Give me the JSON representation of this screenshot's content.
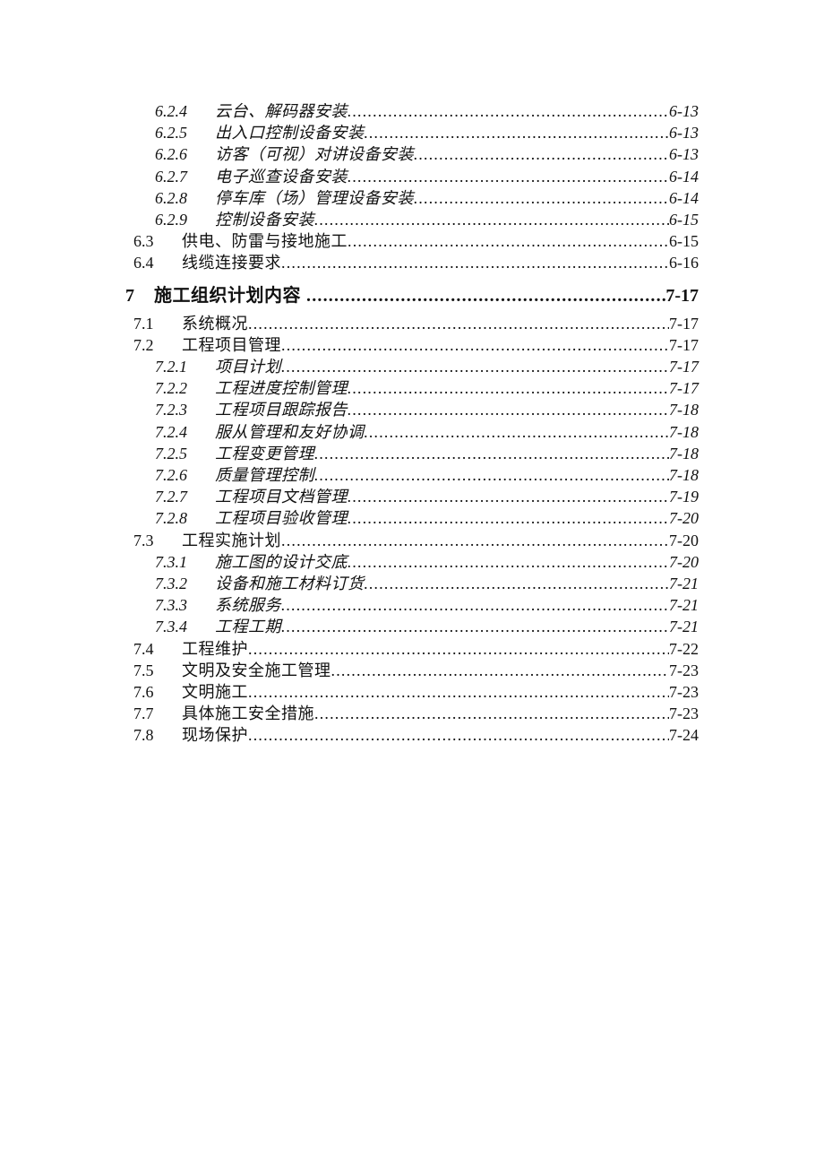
{
  "page": {
    "background": "#ffffff",
    "text_color": "#111111"
  },
  "toc": {
    "entries": [
      {
        "number": "6.2.4",
        "title": "云台、解码器安装",
        "page": "6-13",
        "level": 3,
        "style": "italic"
      },
      {
        "number": "6.2.5",
        "title": "出入口控制设备安装",
        "page": "6-13",
        "level": 3,
        "style": "italic"
      },
      {
        "number": "6.2.6",
        "title": "访客（可视）对讲设备安装",
        "page": "6-13",
        "level": 3,
        "style": "italic"
      },
      {
        "number": "6.2.7",
        "title": "电子巡查设备安装",
        "page": "6-14",
        "level": 3,
        "style": "italic"
      },
      {
        "number": "6.2.8",
        "title": "停车库（场）管理设备安装",
        "page": "6-14",
        "level": 3,
        "style": "italic"
      },
      {
        "number": "6.2.9",
        "title": "控制设备安装",
        "page": "6-15",
        "level": 3,
        "style": "italic"
      },
      {
        "number": "6.3",
        "title": "供电、防雷与接地施工",
        "page": "6-15",
        "level": 2,
        "style": "regular"
      },
      {
        "number": "6.4",
        "title": "线缆连接要求",
        "page": "6-16",
        "level": 2,
        "style": "regular"
      },
      {
        "number": "7",
        "title": "施工组织计划内容",
        "page": "7-17",
        "level": 1,
        "style": "bold"
      },
      {
        "number": "7.1",
        "title": "系统概况",
        "page": "7-17",
        "level": 2,
        "style": "regular"
      },
      {
        "number": "7.2",
        "title": "工程项目管理",
        "page": "7-17",
        "level": 2,
        "style": "regular"
      },
      {
        "number": "7.2.1",
        "title": "项目计划",
        "page": "7-17",
        "level": 3,
        "style": "italic"
      },
      {
        "number": "7.2.2",
        "title": "工程进度控制管理",
        "page": "7-17",
        "level": 3,
        "style": "italic"
      },
      {
        "number": "7.2.3",
        "title": "工程项目跟踪报告",
        "page": "7-18",
        "level": 3,
        "style": "italic"
      },
      {
        "number": "7.2.4",
        "title": "服从管理和友好协调",
        "page": "7-18",
        "level": 3,
        "style": "italic"
      },
      {
        "number": "7.2.5",
        "title": "工程变更管理",
        "page": "7-18",
        "level": 3,
        "style": "italic"
      },
      {
        "number": "7.2.6",
        "title": "质量管理控制",
        "page": "7-18",
        "level": 3,
        "style": "italic"
      },
      {
        "number": "7.2.7",
        "title": "工程项目文档管理",
        "page": "7-19",
        "level": 3,
        "style": "italic"
      },
      {
        "number": "7.2.8",
        "title": "工程项目验收管理",
        "page": "7-20",
        "level": 3,
        "style": "italic"
      },
      {
        "number": "7.3",
        "title": "工程实施计划",
        "page": "7-20",
        "level": 2,
        "style": "regular"
      },
      {
        "number": "7.3.1",
        "title": "施工图的设计交底",
        "page": "7-20",
        "level": 3,
        "style": "italic"
      },
      {
        "number": "7.3.2",
        "title": "设备和施工材料订货",
        "page": "7-21",
        "level": 3,
        "style": "italic"
      },
      {
        "number": "7.3.3",
        "title": "系统服务",
        "page": "7-21",
        "level": 3,
        "style": "italic"
      },
      {
        "number": "7.3.4",
        "title": "工程工期",
        "page": "7-21",
        "level": 3,
        "style": "italic"
      },
      {
        "number": "7.4",
        "title": "工程维护",
        "page": "7-22",
        "level": 2,
        "style": "regular"
      },
      {
        "number": "7.5",
        "title": "文明及安全施工管理",
        "page": "7-23",
        "level": 2,
        "style": "regular"
      },
      {
        "number": "7.6",
        "title": "文明施工",
        "page": "7-23",
        "level": 2,
        "style": "regular"
      },
      {
        "number": "7.7",
        "title": "具体施工安全措施",
        "page": "7-23",
        "level": 2,
        "style": "regular"
      },
      {
        "number": "7.8",
        "title": "现场保护",
        "page": "7-24",
        "level": 2,
        "style": "regular"
      }
    ]
  }
}
